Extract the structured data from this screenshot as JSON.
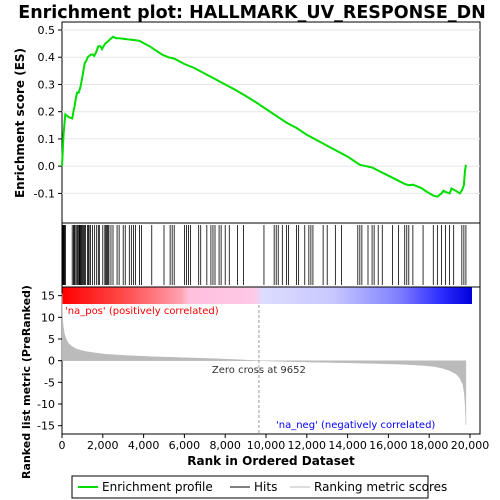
{
  "chart_data": [
    {
      "panel": "enrichment",
      "type": "line",
      "title": "Enrichment plot: HALLMARK_UV_RESPONSE_DN",
      "ylabel": "Enrichment score (ES)",
      "xlim": [
        0,
        20500
      ],
      "ylim": [
        -0.15,
        0.5
      ],
      "y_ticks": [
        "0.5",
        "0.4",
        "0.3",
        "0.2",
        "0.1",
        "0.0",
        "-0.1"
      ],
      "y_tick_values": [
        0.5,
        0.4,
        0.3,
        0.2,
        0.1,
        0.0,
        -0.1
      ],
      "series": [
        {
          "name": "Enrichment profile",
          "color": "#00dd00",
          "x": [
            0,
            80,
            160,
            250,
            330,
            500,
            560,
            620,
            680,
            740,
            820,
            900,
            980,
            1050,
            1120,
            1180,
            1260,
            1340,
            1420,
            1500,
            1580,
            1680,
            1780,
            1880,
            1960,
            2040,
            2120,
            2200,
            2280,
            2350,
            2420,
            2500,
            2650,
            2800,
            3000,
            3200,
            3400,
            3600,
            3800,
            4000,
            4300,
            4600,
            4900,
            5200,
            5500,
            6000,
            6500,
            7000,
            7500,
            8000,
            8500,
            9000,
            9500,
            10000,
            10500,
            11000,
            11500,
            12000,
            12500,
            13000,
            13500,
            14000,
            14300,
            14600,
            14900,
            15200,
            15600,
            16000,
            16400,
            16800,
            17000,
            17200,
            17600,
            17900,
            18200,
            18400,
            18600,
            18700,
            18800,
            19000,
            19100,
            19300,
            19500,
            19600,
            19700,
            19750,
            19800
          ],
          "y": [
            0.0,
            0.12,
            0.19,
            0.185,
            0.18,
            0.175,
            0.2,
            0.22,
            0.25,
            0.27,
            0.27,
            0.29,
            0.32,
            0.35,
            0.38,
            0.385,
            0.4,
            0.405,
            0.41,
            0.41,
            0.405,
            0.42,
            0.44,
            0.44,
            0.43,
            0.44,
            0.45,
            0.455,
            0.46,
            0.465,
            0.47,
            0.475,
            0.47,
            0.47,
            0.468,
            0.466,
            0.464,
            0.462,
            0.46,
            0.452,
            0.44,
            0.425,
            0.41,
            0.4,
            0.395,
            0.375,
            0.36,
            0.34,
            0.32,
            0.3,
            0.28,
            0.258,
            0.235,
            0.21,
            0.185,
            0.16,
            0.14,
            0.115,
            0.095,
            0.075,
            0.055,
            0.035,
            0.02,
            0.005,
            0.0,
            -0.005,
            -0.02,
            -0.035,
            -0.05,
            -0.065,
            -0.07,
            -0.068,
            -0.08,
            -0.095,
            -0.108,
            -0.112,
            -0.1,
            -0.09,
            -0.095,
            -0.1,
            -0.082,
            -0.09,
            -0.1,
            -0.09,
            -0.07,
            -0.02,
            0.005
          ]
        }
      ]
    },
    {
      "panel": "hits",
      "type": "scatter",
      "series": [
        {
          "name": "Hits",
          "color": "#000000",
          "x": [
            30,
            60,
            95,
            130,
            170,
            500,
            560,
            600,
            640,
            700,
            760,
            800,
            850,
            880,
            920,
            960,
            1000,
            1050,
            1100,
            1150,
            1250,
            1300,
            1330,
            1400,
            1500,
            1600,
            1700,
            1780,
            1830,
            2000,
            2100,
            2150,
            2200,
            2250,
            2300,
            2400,
            2500,
            2700,
            2800,
            3000,
            3100,
            3300,
            3400,
            3500,
            3600,
            3800,
            3900,
            4400,
            5000,
            5300,
            5400,
            5500,
            6000,
            6100,
            6200,
            6300,
            6700,
            6800,
            7100,
            7300,
            7400,
            7500,
            7700,
            7800,
            8000,
            8200,
            8600,
            8900,
            9900,
            10400,
            10500,
            10600,
            10800,
            11000,
            11100,
            11500,
            11600,
            11900,
            12100,
            12200,
            12300,
            12800,
            13000,
            13400,
            13700,
            14500,
            14600,
            14700,
            15000,
            15200,
            15300,
            15500,
            15700,
            16200,
            16500,
            16800,
            16900,
            17000,
            17200,
            17700,
            18200,
            18400,
            18600,
            18800,
            19000,
            19200,
            19600,
            19700,
            19800
          ]
        }
      ]
    },
    {
      "panel": "ranked-list",
      "type": "area",
      "ylabel": "Ranked list metric (PreRanked)",
      "xlabel": "Rank in Ordered Dataset",
      "xlim": [
        0,
        20500
      ],
      "ylim": [
        -16,
        17
      ],
      "x_ticks": [
        "0",
        "2,000",
        "4,000",
        "6,000",
        "8,000",
        "10,000",
        "12,000",
        "14,000",
        "16,000",
        "18,000",
        "20,000"
      ],
      "x_tick_values": [
        0,
        2000,
        4000,
        6000,
        8000,
        10000,
        12000,
        14000,
        16000,
        18000,
        20000
      ],
      "y_ticks": [
        "15",
        "10",
        "5",
        "0",
        "-5",
        "-10",
        "-15"
      ],
      "y_tick_values": [
        15,
        10,
        5,
        0,
        -5,
        -10,
        -15
      ],
      "series": [
        {
          "name": "Ranking metric scores",
          "color": "#bbbbbb",
          "x": [
            0,
            20,
            60,
            120,
            200,
            300,
            450,
            650,
            900,
            1200,
            1600,
            2100,
            2700,
            3500,
            4500,
            5500,
            6500,
            7500,
            8500,
            9652,
            11000,
            12500,
            14000,
            15500,
            16500,
            17200,
            17800,
            18300,
            18700,
            19000,
            19300,
            19500,
            19650,
            19720,
            19760,
            19790,
            19800
          ],
          "y": [
            15.5,
            10.5,
            8.0,
            6.2,
            5.0,
            4.1,
            3.4,
            2.8,
            2.4,
            2.1,
            1.8,
            1.5,
            1.3,
            1.1,
            0.9,
            0.75,
            0.6,
            0.45,
            0.25,
            0.0,
            -0.2,
            -0.35,
            -0.5,
            -0.65,
            -0.8,
            -0.95,
            -1.15,
            -1.4,
            -1.8,
            -2.3,
            -3.0,
            -4.0,
            -5.5,
            -7.5,
            -10.0,
            -13.0,
            -14.8
          ]
        }
      ],
      "zero_cross_label": "Zero cross at 9652",
      "zero_cross": 9652,
      "pos_label": "'na_pos' (positively correlated)",
      "neg_label": "'na_neg' (negatively correlated)"
    }
  ],
  "legend": {
    "items": [
      {
        "label": "Enrichment profile",
        "color": "#00dd00"
      },
      {
        "label": "Hits",
        "color": "#000000"
      },
      {
        "label": "Ranking metric scores",
        "color": "#bbbbbb"
      }
    ]
  },
  "colors": {
    "pos_label": "#ff0000",
    "neg_label": "#0000ff",
    "gradient_red": "#ff0000",
    "gradient_pink": "#ffc8dc",
    "gradient_lavender": "#d8d8ff",
    "gradient_blue": "#0000ee"
  }
}
